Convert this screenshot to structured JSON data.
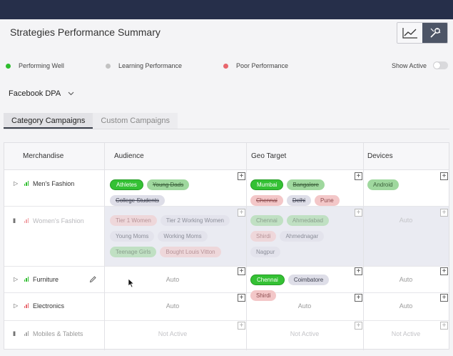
{
  "page": {
    "title": "Strategies Performance Summary"
  },
  "view_toggle": {
    "icons": [
      "line-chart-icon",
      "tools-icon"
    ],
    "active": "tools"
  },
  "legend": [
    {
      "label": "Performing Well",
      "color": "#2ebd2e"
    },
    {
      "label": "Learning Performance",
      "color": "#c2c2c2"
    },
    {
      "label": "Poor Performance",
      "color": "#e8666d"
    }
  ],
  "show_active": {
    "label": "Show Active",
    "on": false
  },
  "account": {
    "selected": "Facebook DPA"
  },
  "tabs": [
    {
      "label": "Category Campaigns",
      "active": true
    },
    {
      "label": "Custom Campaigns",
      "active": false
    }
  ],
  "table": {
    "columns": [
      "Merchandise",
      "Audience",
      "Geo Target",
      "Devices"
    ],
    "rows": [
      {
        "name": "Men's Fashion",
        "state": "play",
        "performance_color": "#2ebd2e",
        "audience": [
          {
            "label": "Athletes",
            "style": "solid-green"
          },
          {
            "label": "Young Dads",
            "style": "green strike"
          },
          {
            "label": "College Students",
            "style": "grey strike"
          }
        ],
        "geo": [
          {
            "label": "Mumbai",
            "style": "solid-green"
          },
          {
            "label": "Bangalore",
            "style": "green strike"
          },
          {
            "label": "Chennai",
            "style": "red strike"
          },
          {
            "label": "Delhi",
            "style": "grey strike"
          },
          {
            "label": "Pune",
            "style": "red"
          }
        ],
        "devices": [
          {
            "label": "Android",
            "style": "green"
          }
        ]
      },
      {
        "name": "Women's Fashion",
        "state": "pause",
        "performance_color": "#e8666d",
        "audience": [
          {
            "label": "Tier 1 Women",
            "style": "red"
          },
          {
            "label": "Tier 2 Working Women",
            "style": "grey"
          },
          {
            "label": "Young Moms",
            "style": "grey"
          },
          {
            "label": "Working Moms",
            "style": "grey"
          },
          {
            "label": "Teenage Girls",
            "style": "green"
          },
          {
            "label": "Bought Louis Vitton",
            "style": "red"
          }
        ],
        "geo": [
          {
            "label": "Chennai",
            "style": "green"
          },
          {
            "label": "Ahmedabad",
            "style": "green"
          },
          {
            "label": "Shirdi",
            "style": "red"
          },
          {
            "label": "Ahmednagar",
            "style": "grey"
          },
          {
            "label": "Nagpur",
            "style": "grey"
          }
        ],
        "devices_text": "Auto"
      },
      {
        "name": "Furniture",
        "state": "play",
        "performance_color": "#2ebd2e",
        "audience_text": "Auto",
        "geo": [
          {
            "label": "Chennai",
            "style": "solid-green"
          },
          {
            "label": "Coimbatore",
            "style": "grey"
          },
          {
            "label": "Shirdi",
            "style": "red"
          }
        ],
        "devices_text": "Auto"
      },
      {
        "name": "Electronics",
        "state": "play",
        "performance_color": "#e8666d",
        "audience_text": "Auto",
        "geo_text": "Auto",
        "devices_text": "Auto"
      },
      {
        "name": "Mobiles & Tablets",
        "state": "pause",
        "performance_color": "#a8a8a8",
        "audience_text": "Not Active",
        "geo_text": "Not Active",
        "devices_text": "Not Active"
      }
    ]
  }
}
